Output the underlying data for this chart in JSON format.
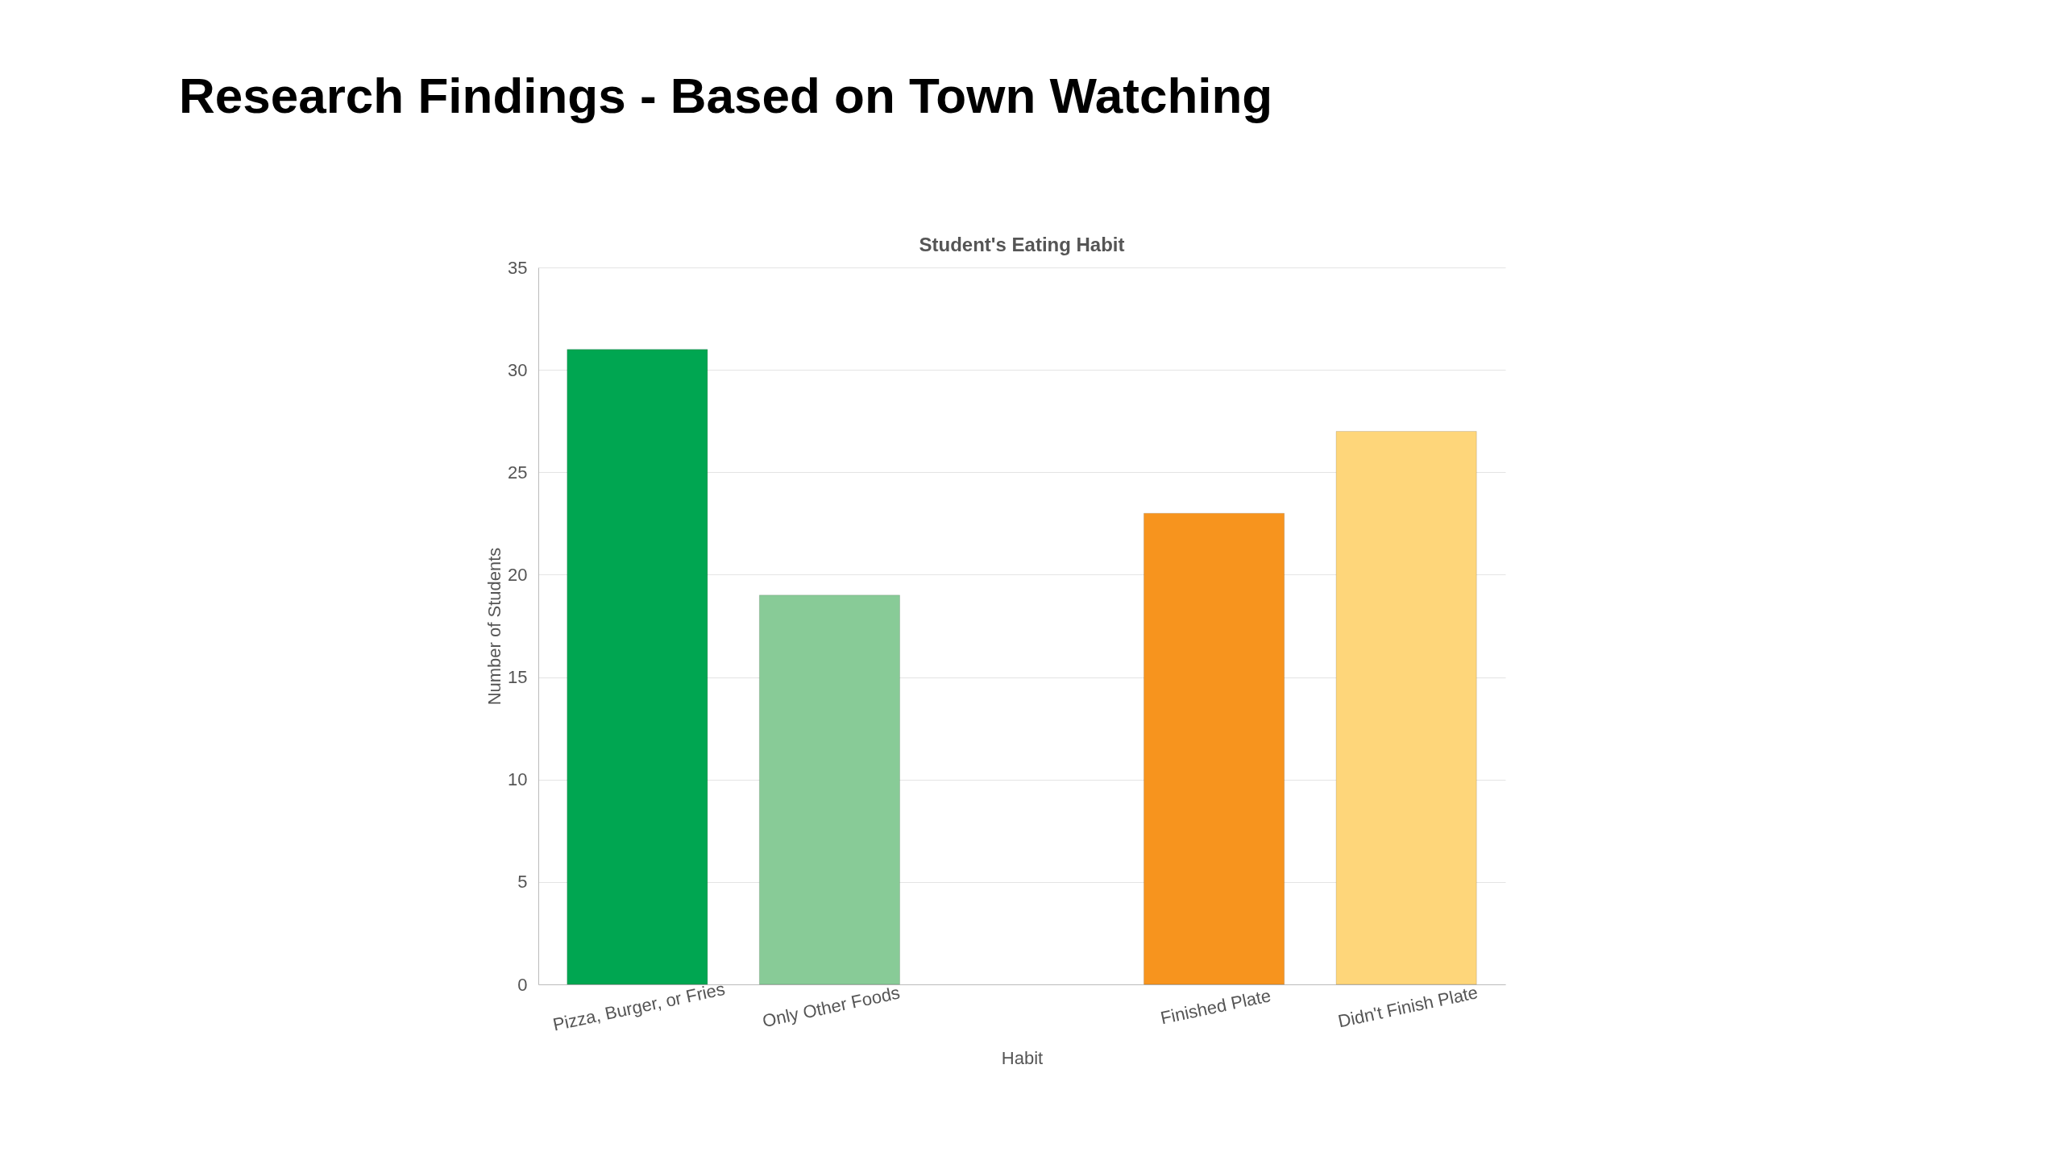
{
  "chart_data": {
    "type": "bar",
    "title": "Research Findings - Based on Town Watching",
    "subtitle": "Student's Eating Habit",
    "xlabel": "Habit",
    "ylabel": "Number of Students",
    "categories": [
      "Pizza, Burger, or Fries",
      "Only Other Foods",
      null,
      "Finished Plate",
      "Didn't Finish Plate"
    ],
    "values": [
      31,
      19,
      null,
      23,
      27
    ],
    "colors": [
      "#00a651",
      "#88cb97",
      "#cccccc",
      "#f7941e",
      "#fed67a"
    ],
    "ylim": [
      0,
      35
    ],
    "yticks": [
      0,
      5,
      10,
      15,
      20,
      25,
      30,
      35
    ],
    "grid": "y"
  }
}
